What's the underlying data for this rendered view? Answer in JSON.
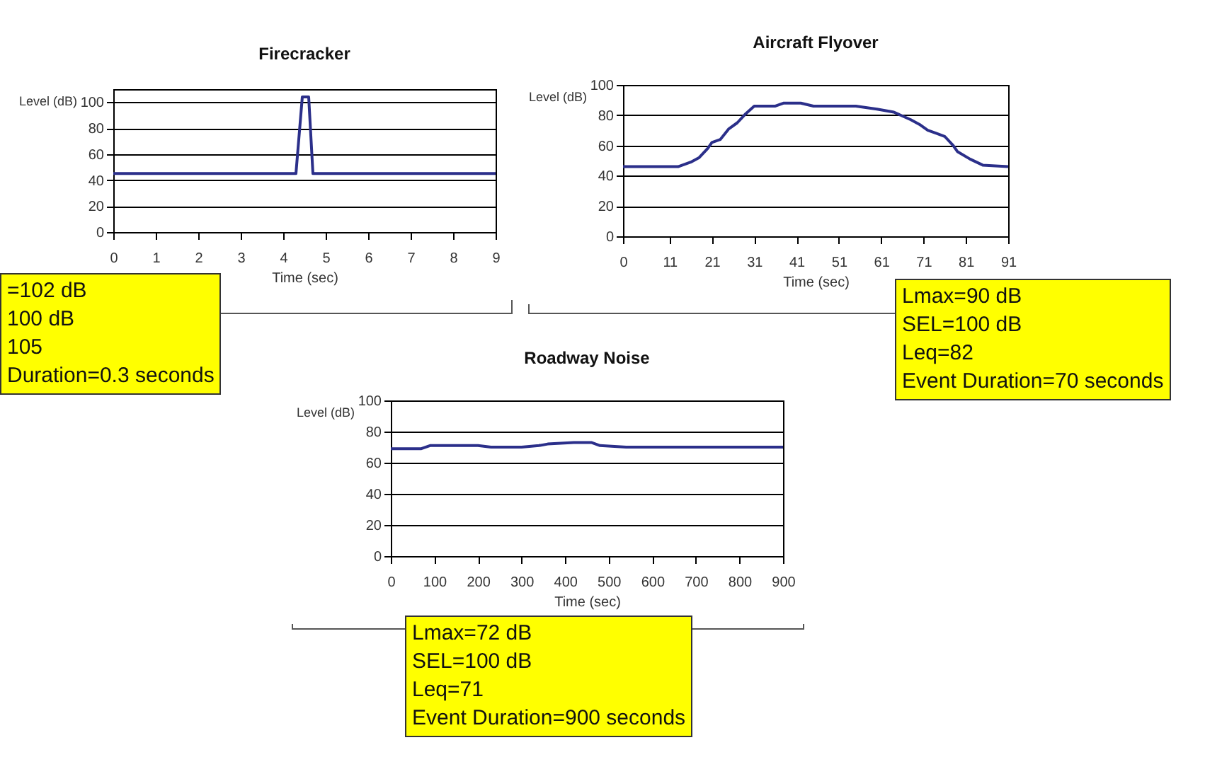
{
  "chart_data": [
    {
      "type": "line",
      "title": "Firecracker",
      "xlabel": "Time (sec)",
      "ylabel": "Level (dB)",
      "x": [
        0,
        4.3,
        4.45,
        4.6,
        4.7,
        9
      ],
      "series": [
        {
          "color": "#2b2f8a",
          "values": [
            45,
            45,
            104,
            104,
            45,
            45
          ]
        }
      ],
      "xlim": [
        0,
        9
      ],
      "xticks": [
        0,
        1,
        2,
        3,
        4,
        5,
        6,
        7,
        8,
        9
      ],
      "ylim": [
        0,
        110
      ],
      "yticks": [
        0,
        20,
        40,
        60,
        80,
        100
      ],
      "grid": "y",
      "legend": false,
      "marker": "none",
      "line_style": "solid",
      "annotations": [
        "=102 dB",
        "100 dB",
        "105",
        "Duration=0.3 seconds"
      ]
    },
    {
      "type": "line",
      "title": "Aircraft Flyover",
      "xlabel": "Time (sec)",
      "ylabel": "Level (dB)",
      "x": [
        0,
        13,
        16,
        18,
        20,
        21,
        23,
        25,
        27,
        29,
        31,
        36,
        38,
        42,
        45,
        55,
        60,
        64,
        68,
        70,
        72,
        74,
        76,
        78,
        79,
        82,
        85,
        91
      ],
      "series": [
        {
          "color": "#2b2f8a",
          "values": [
            46,
            46,
            49,
            52,
            58,
            62,
            64,
            71,
            75,
            81,
            86,
            86,
            88,
            88,
            86,
            86,
            84,
            82,
            77,
            74,
            70,
            68,
            66,
            60,
            56,
            51,
            47,
            46
          ]
        }
      ],
      "xlim": [
        0,
        91
      ],
      "xticks": [
        0,
        11,
        21,
        31,
        41,
        51,
        61,
        71,
        81,
        91
      ],
      "ylim": [
        0,
        100
      ],
      "yticks": [
        0,
        20,
        40,
        60,
        80,
        100
      ],
      "grid": "y",
      "legend": false,
      "marker": "none",
      "line_style": "solid",
      "annotations": [
        "Lmax=90 dB",
        "SEL=100 dB",
        "Leq=82",
        "Event Duration=70 seconds"
      ]
    },
    {
      "type": "line",
      "title": "Roadway Noise",
      "xlabel": "Time (sec)",
      "ylabel": "Level (dB)",
      "x": [
        0,
        70,
        90,
        200,
        230,
        300,
        340,
        360,
        420,
        460,
        480,
        540,
        900
      ],
      "series": [
        {
          "color": "#2b2f8a",
          "values": [
            69,
            69,
            71,
            71,
            70,
            70,
            71,
            72,
            73,
            73,
            71,
            70,
            70
          ]
        }
      ],
      "xlim": [
        0,
        900
      ],
      "xticks": [
        0,
        100,
        200,
        300,
        400,
        500,
        600,
        700,
        800,
        900
      ],
      "ylim": [
        0,
        100
      ],
      "yticks": [
        0,
        20,
        40,
        60,
        80,
        100
      ],
      "grid": "y",
      "legend": false,
      "marker": "none",
      "line_style": "solid",
      "annotations": [
        "Lmax=72 dB",
        "SEL=100 dB",
        "Leq=71",
        "Event Duration=900 seconds"
      ]
    }
  ]
}
